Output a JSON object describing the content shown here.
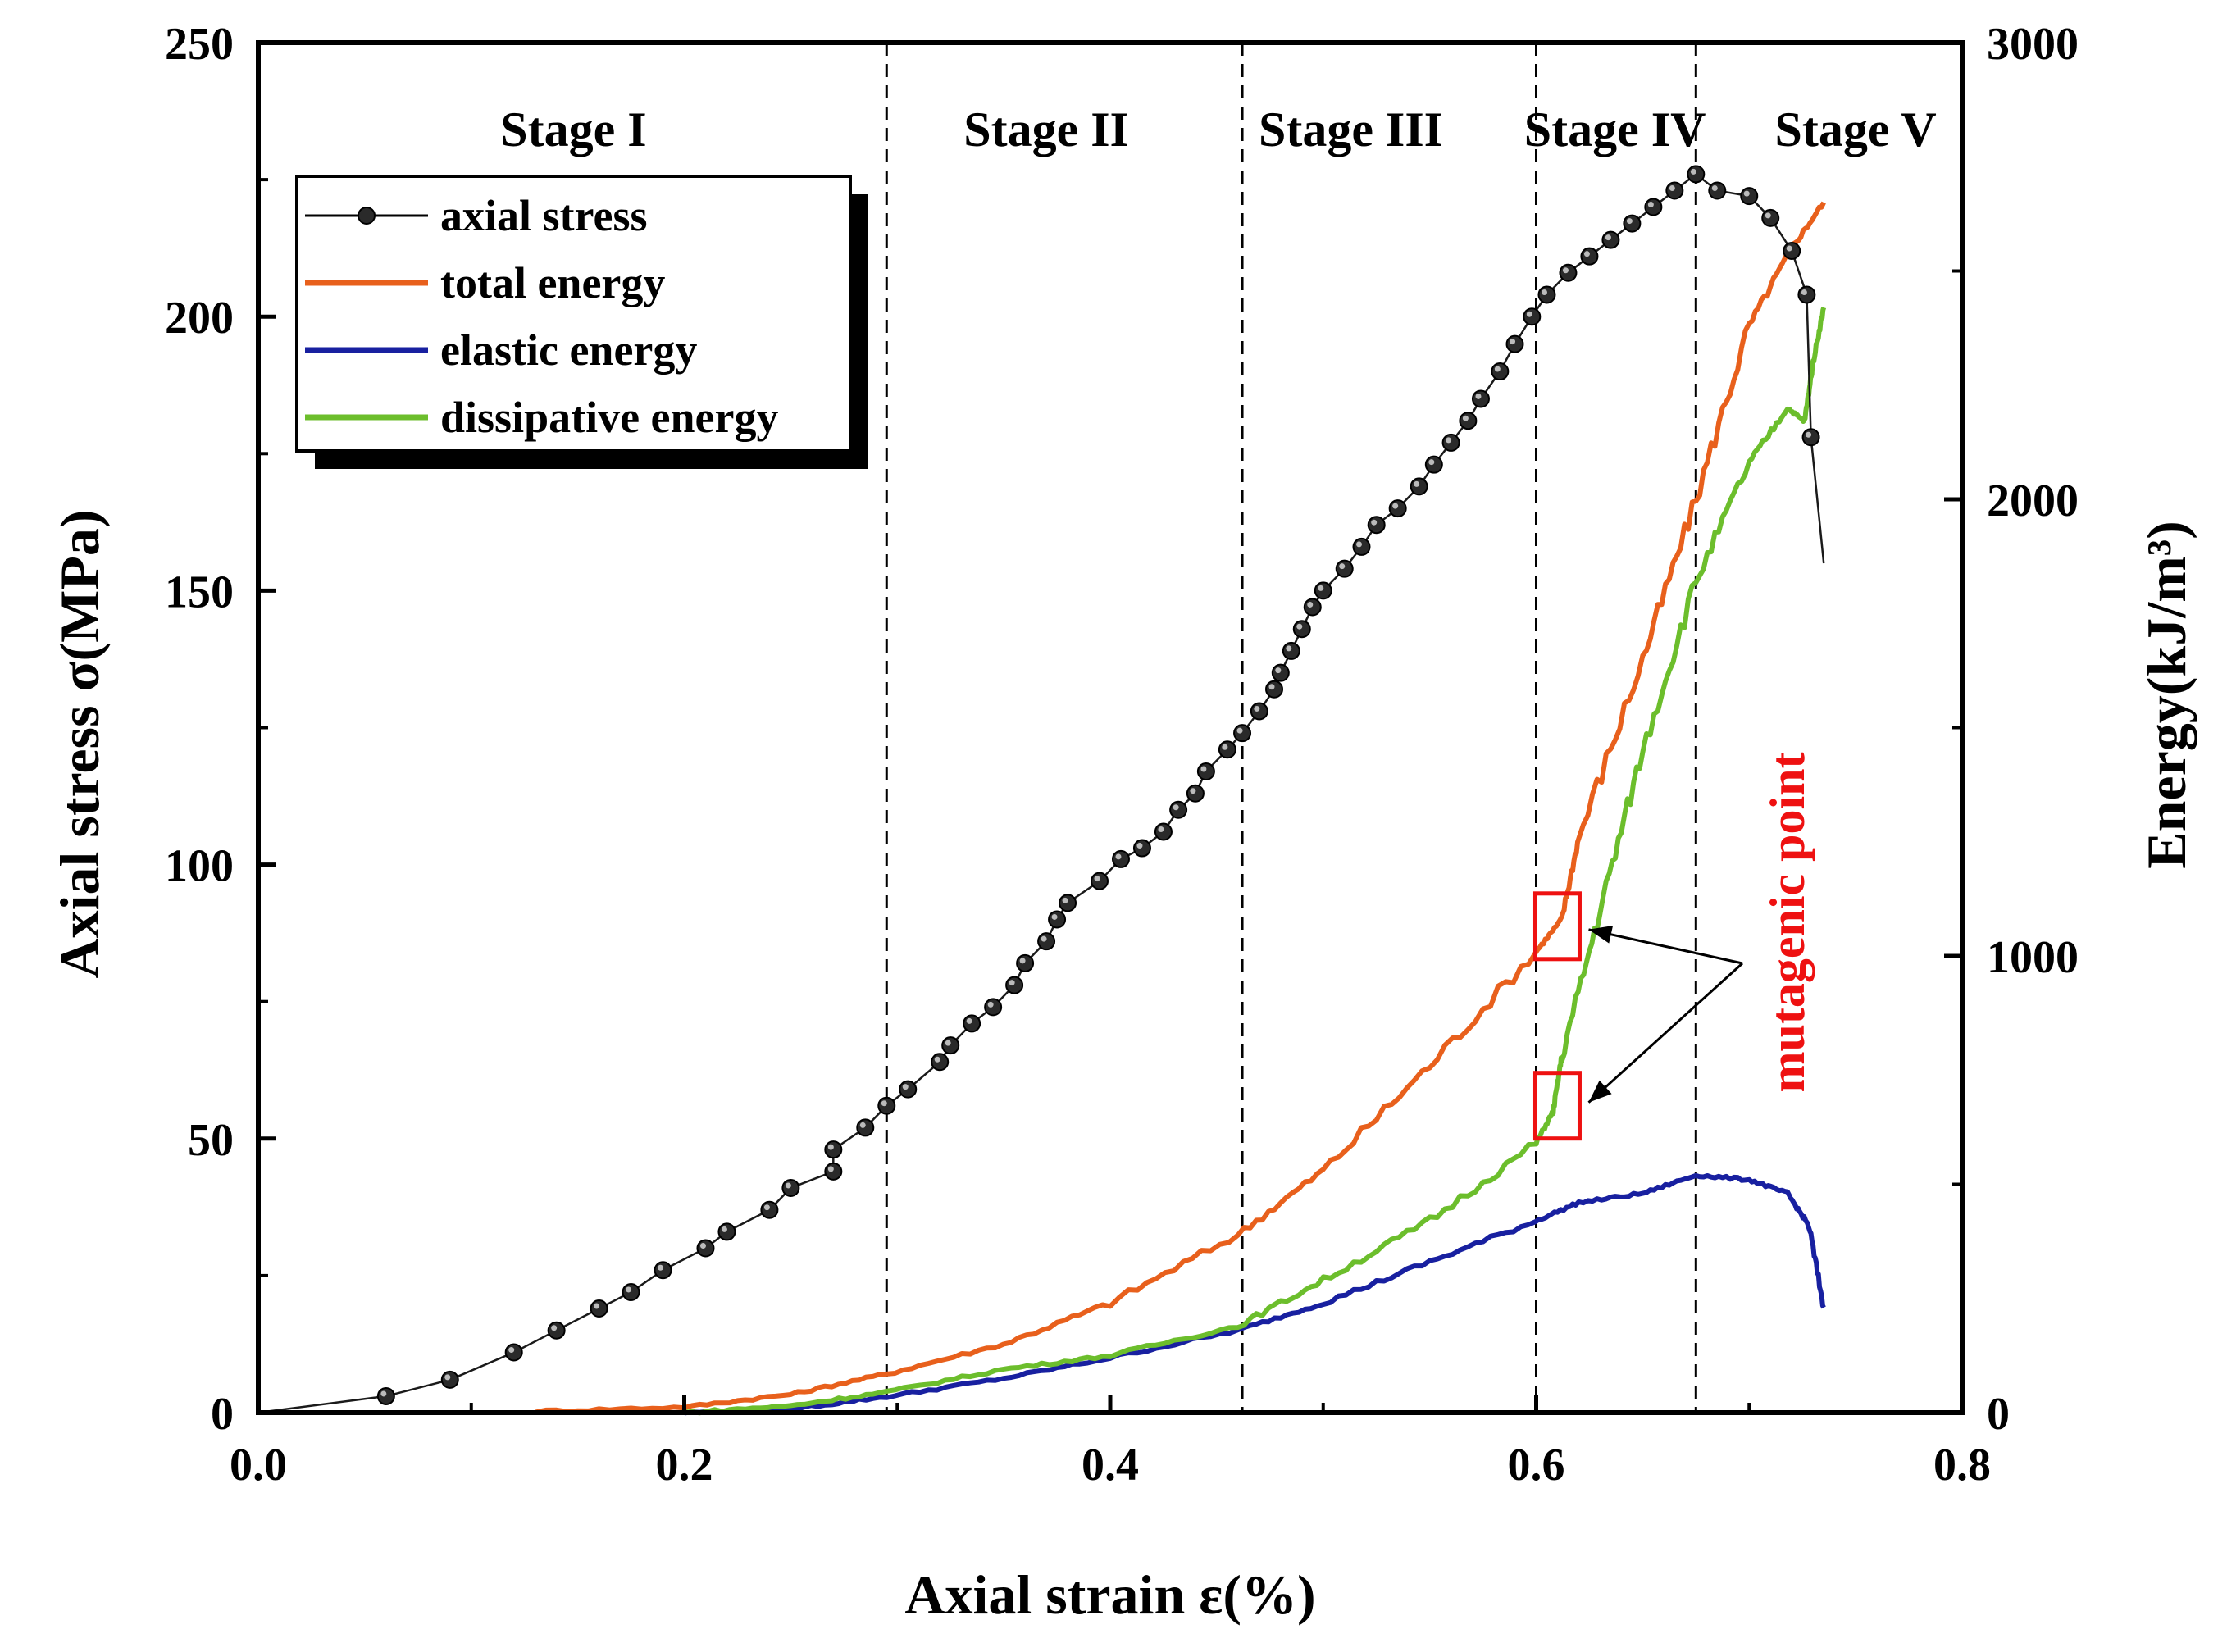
{
  "chart_data": {
    "type": "line",
    "xlabel": "Axial strain ε(%)",
    "ylabel": "Axial stress σ(MPa)",
    "y2label": "Energy(kJ/m³)",
    "xlim": [
      0.0,
      0.8
    ],
    "ylim": [
      0,
      250
    ],
    "y2lim": [
      0,
      3000
    ],
    "xticks": [
      "0.0",
      "0.2",
      "0.4",
      "0.6",
      "0.8"
    ],
    "yticks": [
      "0",
      "50",
      "100",
      "150",
      "200",
      "250"
    ],
    "y2ticks": [
      "0",
      "1000",
      "2000",
      "3000"
    ],
    "grid": false,
    "legend_position": "top-left",
    "stage_boundaries": [
      0.295,
      0.462,
      0.6,
      0.675
    ],
    "stages": [
      {
        "label": "Stage I",
        "x": 0.148
      },
      {
        "label": "Stage II",
        "x": 0.37
      },
      {
        "label": "Stage III",
        "x": 0.513
      },
      {
        "label": "Stage IV",
        "x": 0.637
      },
      {
        "label": "Stage V",
        "x": 0.75
      }
    ],
    "series": [
      {
        "name": "axial stress",
        "axis": "left",
        "color": "#1a1a1a",
        "marker": "circle",
        "points": [
          [
            0.0,
            0
          ],
          [
            0.06,
            3
          ],
          [
            0.09,
            6
          ],
          [
            0.12,
            11
          ],
          [
            0.14,
            15
          ],
          [
            0.16,
            19
          ],
          [
            0.175,
            22
          ],
          [
            0.19,
            26
          ],
          [
            0.21,
            30
          ],
          [
            0.22,
            33
          ],
          [
            0.24,
            37
          ],
          [
            0.25,
            41
          ],
          [
            0.27,
            44
          ],
          [
            0.27,
            48
          ],
          [
            0.285,
            52
          ],
          [
            0.295,
            56
          ],
          [
            0.305,
            59
          ],
          [
            0.32,
            64
          ],
          [
            0.325,
            67
          ],
          [
            0.335,
            71
          ],
          [
            0.345,
            74
          ],
          [
            0.355,
            78
          ],
          [
            0.36,
            82
          ],
          [
            0.37,
            86
          ],
          [
            0.375,
            90
          ],
          [
            0.38,
            93
          ],
          [
            0.395,
            97
          ],
          [
            0.405,
            101
          ],
          [
            0.415,
            103
          ],
          [
            0.425,
            106
          ],
          [
            0.432,
            110
          ],
          [
            0.44,
            113
          ],
          [
            0.445,
            117
          ],
          [
            0.455,
            121
          ],
          [
            0.462,
            124
          ],
          [
            0.47,
            128
          ],
          [
            0.477,
            132
          ],
          [
            0.48,
            135
          ],
          [
            0.485,
            139
          ],
          [
            0.49,
            143
          ],
          [
            0.495,
            147
          ],
          [
            0.5,
            150
          ],
          [
            0.51,
            154
          ],
          [
            0.518,
            158
          ],
          [
            0.525,
            162
          ],
          [
            0.535,
            165
          ],
          [
            0.545,
            169
          ],
          [
            0.552,
            173
          ],
          [
            0.56,
            177
          ],
          [
            0.568,
            181
          ],
          [
            0.574,
            185
          ],
          [
            0.583,
            190
          ],
          [
            0.59,
            195
          ],
          [
            0.598,
            200
          ],
          [
            0.605,
            204
          ],
          [
            0.615,
            208
          ],
          [
            0.625,
            211
          ],
          [
            0.635,
            214
          ],
          [
            0.645,
            217
          ],
          [
            0.655,
            220
          ],
          [
            0.665,
            223
          ],
          [
            0.675,
            226
          ],
          [
            0.685,
            223
          ],
          [
            0.7,
            222
          ],
          [
            0.71,
            218
          ],
          [
            0.72,
            212
          ],
          [
            0.727,
            204
          ],
          [
            0.729,
            178
          ],
          [
            0.735,
            155
          ]
        ]
      },
      {
        "name": "total energy",
        "axis": "right",
        "color": "#e8601c",
        "points": [
          [
            0.13,
            3
          ],
          [
            0.2,
            12
          ],
          [
            0.25,
            40
          ],
          [
            0.295,
            85
          ],
          [
            0.35,
            150
          ],
          [
            0.4,
            240
          ],
          [
            0.46,
            390
          ],
          [
            0.5,
            530
          ],
          [
            0.55,
            760
          ],
          [
            0.6,
            1010
          ],
          [
            0.612,
            1080
          ],
          [
            0.62,
            1260
          ],
          [
            0.65,
            1650
          ],
          [
            0.675,
            2000
          ],
          [
            0.7,
            2380
          ],
          [
            0.72,
            2550
          ],
          [
            0.735,
            2650
          ]
        ]
      },
      {
        "name": "elastic energy",
        "axis": "right",
        "color": "#1820a0",
        "points": [
          [
            0.2,
            0
          ],
          [
            0.25,
            8
          ],
          [
            0.295,
            35
          ],
          [
            0.35,
            75
          ],
          [
            0.4,
            120
          ],
          [
            0.46,
            180
          ],
          [
            0.5,
            240
          ],
          [
            0.55,
            330
          ],
          [
            0.6,
            420
          ],
          [
            0.62,
            460
          ],
          [
            0.65,
            480
          ],
          [
            0.675,
            520
          ],
          [
            0.7,
            510
          ],
          [
            0.718,
            480
          ],
          [
            0.728,
            410
          ],
          [
            0.735,
            230
          ]
        ]
      },
      {
        "name": "dissipative energy",
        "axis": "right",
        "color": "#6cbe2c",
        "points": [
          [
            0.2,
            0
          ],
          [
            0.25,
            15
          ],
          [
            0.295,
            45
          ],
          [
            0.35,
            95
          ],
          [
            0.4,
            125
          ],
          [
            0.46,
            190
          ],
          [
            0.5,
            290
          ],
          [
            0.55,
            420
          ],
          [
            0.6,
            590
          ],
          [
            0.608,
            660
          ],
          [
            0.612,
            780
          ],
          [
            0.63,
            1100
          ],
          [
            0.65,
            1450
          ],
          [
            0.675,
            1820
          ],
          [
            0.7,
            2080
          ],
          [
            0.718,
            2200
          ],
          [
            0.726,
            2170
          ],
          [
            0.73,
            2300
          ],
          [
            0.735,
            2420
          ]
        ]
      }
    ],
    "annotations": [
      {
        "text": "mutagenic point",
        "color": "#ee1111",
        "targets": [
          [
            0.61,
            1065
          ],
          [
            0.61,
            672
          ]
        ]
      }
    ]
  }
}
